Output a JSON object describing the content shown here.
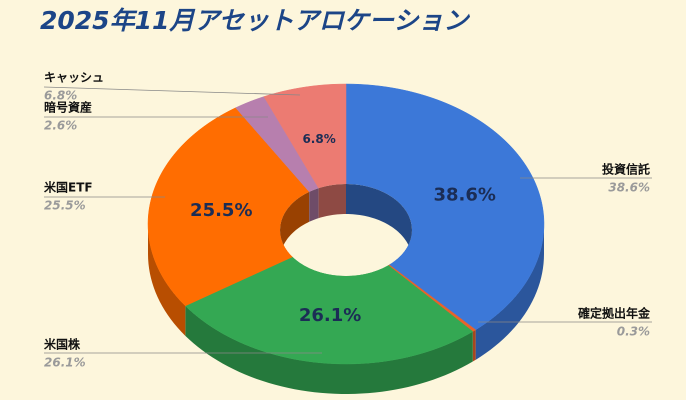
{
  "chart_data": {
    "type": "pie",
    "title": "2025年11月アセットアロケーション",
    "categories": [
      "投資信託",
      "確定拠出年金",
      "米国株",
      "米国ETF",
      "暗号資産",
      "キャッシュ"
    ],
    "values": [
      38.6,
      0.3,
      26.1,
      25.5,
      2.6,
      6.8
    ],
    "value_labels": [
      "38.6%",
      "0.3%",
      "26.1%",
      "25.5%",
      "2.6%",
      "6.8%"
    ],
    "colors": [
      "#3c78d8",
      "#e8622a",
      "#34a853",
      "#ff6d01",
      "#b77fae",
      "#ec7b72"
    ]
  }
}
